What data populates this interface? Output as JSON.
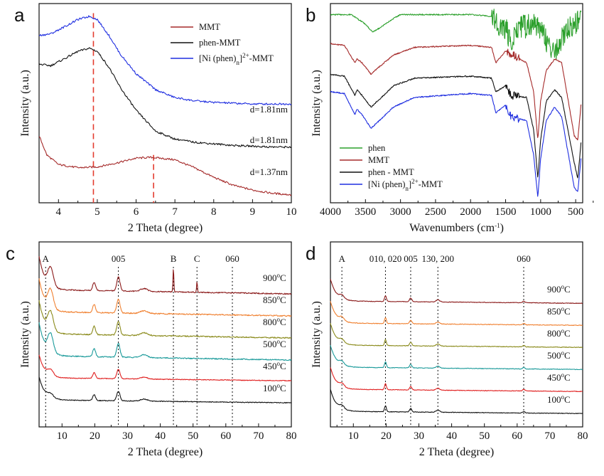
{
  "chart_data": [
    {
      "panel": "a",
      "type": "line",
      "xlabel": "2 Theta (degree)",
      "ylabel": "Intensity (a.u.)",
      "xlim": [
        3.5,
        10
      ],
      "xticks": [
        4,
        5,
        6,
        7,
        8,
        9,
        10
      ],
      "legend_position": "top-right",
      "colors": {
        "MMT": "#a52a2a",
        "phen-MMT": "#111111",
        "Ni": "#1f2ee0",
        "ref": "#e33b2e"
      },
      "series": [
        {
          "key": "MMT",
          "name": "MMT",
          "color": "#a52a2a",
          "label": "d=1.37nm",
          "x": [
            3.5,
            3.7,
            4.0,
            4.5,
            5.0,
            5.5,
            6.0,
            6.4,
            7.0,
            7.5,
            8.0,
            8.5,
            9.0,
            9.5,
            10.0
          ],
          "y": [
            0.42,
            0.3,
            0.24,
            0.22,
            0.225,
            0.25,
            0.28,
            0.285,
            0.27,
            0.22,
            0.16,
            0.11,
            0.08,
            0.06,
            0.05
          ]
        },
        {
          "key": "phen-MMT",
          "name": "phen-MMT",
          "color": "#111111",
          "label": "d=1.81nm",
          "x": [
            3.5,
            3.8,
            4.2,
            4.5,
            4.8,
            5.0,
            5.3,
            5.6,
            6.0,
            6.5,
            7.0,
            7.5,
            8.0,
            8.5,
            9.0,
            9.5,
            10.0
          ],
          "y": [
            0.87,
            0.86,
            0.91,
            0.95,
            0.97,
            0.95,
            0.85,
            0.72,
            0.58,
            0.45,
            0.4,
            0.38,
            0.37,
            0.36,
            0.355,
            0.35,
            0.35
          ]
        },
        {
          "key": "Ni",
          "name": "[Ni (phen)n]2+-MMT",
          "color": "#1f2ee0",
          "label": "d=1.81nm",
          "x": [
            3.5,
            3.8,
            4.2,
            4.5,
            4.8,
            5.0,
            5.3,
            5.6,
            6.0,
            6.5,
            7.0,
            7.5,
            8.0,
            8.5,
            9.0,
            9.5,
            10.0
          ],
          "y": [
            1.05,
            1.06,
            1.11,
            1.15,
            1.17,
            1.15,
            1.05,
            0.93,
            0.81,
            0.71,
            0.66,
            0.64,
            0.63,
            0.625,
            0.62,
            0.62,
            0.62
          ]
        }
      ],
      "reference_lines": [
        4.9,
        6.45
      ],
      "legend": [
        "MMT",
        "phen-MMT",
        "[Ni (phen)n]2+-MMT"
      ],
      "annotations": [
        "d=1.81nm",
        "d=1.81nm",
        "d=1.37nm"
      ]
    },
    {
      "panel": "b",
      "type": "line",
      "xlabel": "Wavenumbers (cm-1)",
      "ylabel": "Intensity (a.u.)",
      "xlim": [
        4000,
        400
      ],
      "xticks": [
        4000,
        3500,
        3000,
        2500,
        2000,
        1500,
        1000,
        500
      ],
      "legend_position": "bottom-left",
      "series": [
        {
          "key": "phen",
          "name": "phen",
          "color": "#2ca02c",
          "x": [
            4000,
            3700,
            3500,
            3400,
            3300,
            3100,
            3000,
            2500,
            2000,
            1650,
            1600,
            1500,
            1420,
            1300,
            1100,
            1000,
            850,
            740,
            650,
            500,
            420
          ],
          "y": [
            0.95,
            0.95,
            0.9,
            0.86,
            0.88,
            0.93,
            0.95,
            0.95,
            0.95,
            0.94,
            0.88,
            0.9,
            0.82,
            0.9,
            0.92,
            0.9,
            0.78,
            0.8,
            0.88,
            0.93,
            0.93
          ]
        },
        {
          "key": "MMT",
          "name": "MMT",
          "color": "#a52a2a",
          "x": [
            4000,
            3800,
            3650,
            3620,
            3550,
            3420,
            3300,
            3100,
            2800,
            2000,
            1700,
            1640,
            1500,
            1200,
            1100,
            1040,
            1000,
            920,
            800,
            700,
            520,
            470,
            420
          ],
          "y": [
            0.8,
            0.79,
            0.7,
            0.72,
            0.7,
            0.64,
            0.68,
            0.74,
            0.78,
            0.79,
            0.78,
            0.7,
            0.76,
            0.7,
            0.55,
            0.3,
            0.5,
            0.66,
            0.72,
            0.7,
            0.32,
            0.3,
            0.5
          ]
        },
        {
          "key": "phen-MMT",
          "name": "phen - MMT",
          "color": "#111111",
          "x": [
            4000,
            3800,
            3650,
            3620,
            3550,
            3420,
            3300,
            3100,
            2800,
            2000,
            1700,
            1640,
            1500,
            1420,
            1200,
            1100,
            1040,
            1000,
            920,
            800,
            700,
            520,
            470,
            420
          ],
          "y": [
            0.64,
            0.63,
            0.53,
            0.56,
            0.53,
            0.47,
            0.51,
            0.58,
            0.62,
            0.63,
            0.62,
            0.55,
            0.58,
            0.53,
            0.52,
            0.35,
            0.1,
            0.3,
            0.5,
            0.56,
            0.52,
            0.18,
            0.1,
            0.3
          ]
        },
        {
          "key": "Ni",
          "name": "[Ni (phen)n]2+-MMT",
          "color": "#1f2ee0",
          "x": [
            4000,
            3800,
            3650,
            3620,
            3550,
            3420,
            3300,
            3100,
            2800,
            2000,
            1700,
            1640,
            1500,
            1420,
            1200,
            1100,
            1040,
            1000,
            920,
            800,
            700,
            520,
            470,
            420
          ],
          "y": [
            0.55,
            0.54,
            0.43,
            0.46,
            0.43,
            0.36,
            0.4,
            0.47,
            0.52,
            0.54,
            0.53,
            0.44,
            0.48,
            0.42,
            0.4,
            0.22,
            0.0,
            0.2,
            0.4,
            0.47,
            0.42,
            0.05,
            0.03,
            0.22
          ]
        }
      ],
      "legend": [
        "phen",
        "MMT",
        "phen - MMT",
        "[Ni (phen)n]2+-MMT"
      ]
    },
    {
      "panel": "c",
      "type": "line",
      "xlabel": "2 Theta (degree)",
      "ylabel": "Intensity (a.u.)",
      "xlim": [
        3,
        80
      ],
      "xticks": [
        10,
        20,
        30,
        40,
        50,
        60,
        70,
        80
      ],
      "peak_labels": [
        {
          "x": 5,
          "text": "A"
        },
        {
          "x": 27.2,
          "text": "005"
        },
        {
          "x": 44,
          "text": "B"
        },
        {
          "x": 51.2,
          "text": "C"
        },
        {
          "x": 62,
          "text": "060"
        }
      ],
      "curves": [
        {
          "label": "900",
          "color": "#8b1a1a",
          "sharp_peaks": [
            44,
            51.2
          ]
        },
        {
          "label": "850",
          "color": "#f08030"
        },
        {
          "label": "800",
          "color": "#8a8a1a"
        },
        {
          "label": "500",
          "color": "#1a9a9a"
        },
        {
          "label": "450",
          "color": "#e02020"
        },
        {
          "label": "100",
          "color": "#111111"
        }
      ],
      "temperature_unit": "oC"
    },
    {
      "panel": "d",
      "type": "line",
      "xlabel": "2 Theta (degree)",
      "ylabel": "Intensity (a.u.)",
      "xlim": [
        3,
        80
      ],
      "xticks": [
        10,
        20,
        30,
        40,
        50,
        60,
        70,
        80
      ],
      "peak_labels": [
        {
          "x": 6.5,
          "text": "A"
        },
        {
          "x": 19.8,
          "text": "010, 020"
        },
        {
          "x": 27.5,
          "text": "005"
        },
        {
          "x": 35.8,
          "text": "130, 200"
        },
        {
          "x": 62,
          "text": "060"
        }
      ],
      "curves": [
        {
          "label": "900",
          "color": "#8b1a1a"
        },
        {
          "label": "850",
          "color": "#f08030"
        },
        {
          "label": "800",
          "color": "#8a8a1a"
        },
        {
          "label": "500",
          "color": "#1a9a9a"
        },
        {
          "label": "450",
          "color": "#e02020"
        },
        {
          "label": "100",
          "color": "#111111"
        }
      ],
      "temperature_unit": "oC"
    }
  ],
  "panel_labels": [
    "a",
    "b",
    "c",
    "d"
  ]
}
